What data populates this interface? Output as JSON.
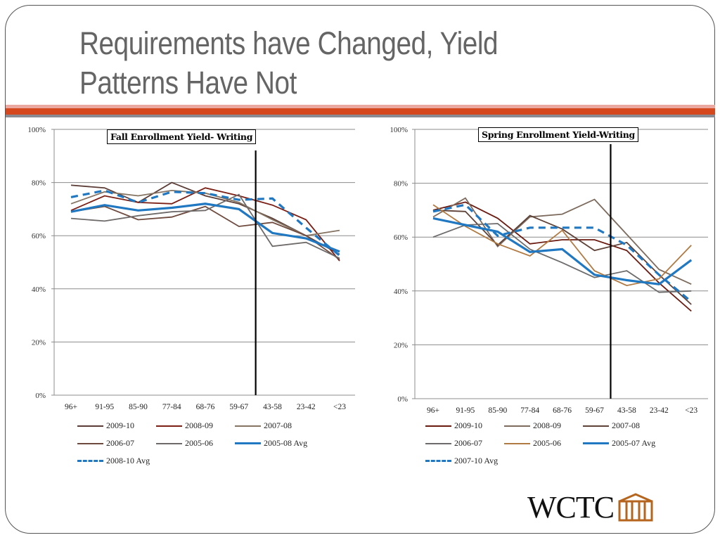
{
  "slide": {
    "title": "Requirements have Changed, Yield Patterns Have Not",
    "title_line1": "Requirements have Changed, Yield",
    "title_line2": "Patterns Have Not",
    "accent_colors": {
      "stripe_light": "#eaa8a0",
      "stripe_main": "#d5471d",
      "stripe_gray": "#8a8a92"
    },
    "logo": {
      "text": "WCTC",
      "icon": "building-columns-icon",
      "icon_color": "#b5651d"
    }
  },
  "chart_data": [
    {
      "type": "line",
      "title": "Fall Enrollment Yield- Writing",
      "xlabel": "",
      "ylabel": "",
      "categories": [
        "96+",
        "91-95",
        "85-90",
        "77-84",
        "68-76",
        "59-67",
        "43-58",
        "23-42",
        "<23"
      ],
      "yticks": [
        "0%",
        "20%",
        "40%",
        "60%",
        "80%",
        "100%"
      ],
      "ylim": [
        0,
        100
      ],
      "grid": true,
      "legend_position": "bottom",
      "divider_between": [
        "59-67",
        "43-58"
      ],
      "series": [
        {
          "name": "2009-10",
          "color": "#5a3b35",
          "width": 1.8,
          "dash": false,
          "values": [
            79,
            78,
            72.5,
            80,
            75,
            72,
            66.5,
            60,
            53
          ]
        },
        {
          "name": "2008-09",
          "color": "#7b1f15",
          "width": 1.8,
          "dash": false,
          "values": [
            69.5,
            75,
            72.5,
            72,
            78,
            75,
            71.5,
            66,
            50.5
          ]
        },
        {
          "name": "2007-08",
          "color": "#857462",
          "width": 1.8,
          "dash": false,
          "values": [
            72,
            76.5,
            75,
            77,
            76,
            72.5,
            66,
            60,
            62
          ]
        },
        {
          "name": "2006-07",
          "color": "#6e4a3e",
          "width": 1.8,
          "dash": false,
          "values": [
            69,
            71,
            66,
            67,
            71,
            63.5,
            65,
            60,
            51
          ]
        },
        {
          "name": "2005-06",
          "color": "#6f6a6a",
          "width": 1.8,
          "dash": false,
          "values": [
            66.5,
            65.5,
            67.5,
            69,
            69.5,
            75.5,
            56,
            57.5,
            51.5
          ]
        },
        {
          "name": "2005-08 Avg",
          "color": "#1f78c1",
          "width": 3.2,
          "dash": false,
          "values": [
            69,
            71.5,
            69.5,
            70.5,
            72,
            70,
            61,
            59,
            54
          ]
        },
        {
          "name": "2008-10 Avg",
          "color": "#1f78c1",
          "width": 3.2,
          "dash": true,
          "values": [
            74.5,
            77,
            72.5,
            76.5,
            76,
            73.5,
            74,
            63,
            52.5
          ]
        }
      ]
    },
    {
      "type": "line",
      "title": "Spring Enrollment Yield-Writing",
      "xlabel": "",
      "ylabel": "",
      "categories": [
        "96+",
        "91-95",
        "85-90",
        "77-84",
        "68-76",
        "59-67",
        "43-58",
        "23-42",
        "<23"
      ],
      "yticks": [
        "0%",
        "20%",
        "40%",
        "60%",
        "80%",
        "100%"
      ],
      "ylim": [
        0,
        100
      ],
      "grid": true,
      "legend_position": "bottom",
      "divider_between": [
        "59-67",
        "43-58"
      ],
      "series": [
        {
          "name": "2009-10",
          "color": "#6b1a10",
          "width": 1.8,
          "dash": false,
          "values": [
            70,
            73,
            67,
            57.5,
            59,
            59,
            55,
            43,
            32.5
          ]
        },
        {
          "name": "2008-09",
          "color": "#7d6c5e",
          "width": 1.8,
          "dash": false,
          "values": [
            67.5,
            74.5,
            56.5,
            67.5,
            68.5,
            74,
            61,
            48,
            42.5
          ]
        },
        {
          "name": "2007-08",
          "color": "#5e4238",
          "width": 1.8,
          "dash": false,
          "values": [
            70,
            69.5,
            57,
            68,
            63,
            55,
            58,
            46,
            35
          ]
        },
        {
          "name": "2006-07",
          "color": "#6d6b6b",
          "width": 1.8,
          "dash": false,
          "values": [
            60,
            64.5,
            65,
            55.5,
            50.5,
            45,
            47.5,
            39.5,
            40
          ]
        },
        {
          "name": "2005-06",
          "color": "#b07a42",
          "width": 1.8,
          "dash": false,
          "values": [
            72,
            64,
            57.5,
            53,
            62.5,
            47.5,
            42,
            44.5,
            57
          ]
        },
        {
          "name": "2005-07 Avg",
          "color": "#1f78c1",
          "width": 3.2,
          "dash": false,
          "values": [
            67,
            64.5,
            62,
            54.5,
            55.5,
            46,
            44,
            42.5,
            51.5
          ]
        },
        {
          "name": "2007-10 Avg",
          "color": "#1f78c1",
          "width": 3.2,
          "dash": true,
          "values": [
            69.5,
            72,
            60.5,
            63.5,
            63.5,
            63.5,
            57,
            46,
            36
          ]
        }
      ]
    }
  ]
}
